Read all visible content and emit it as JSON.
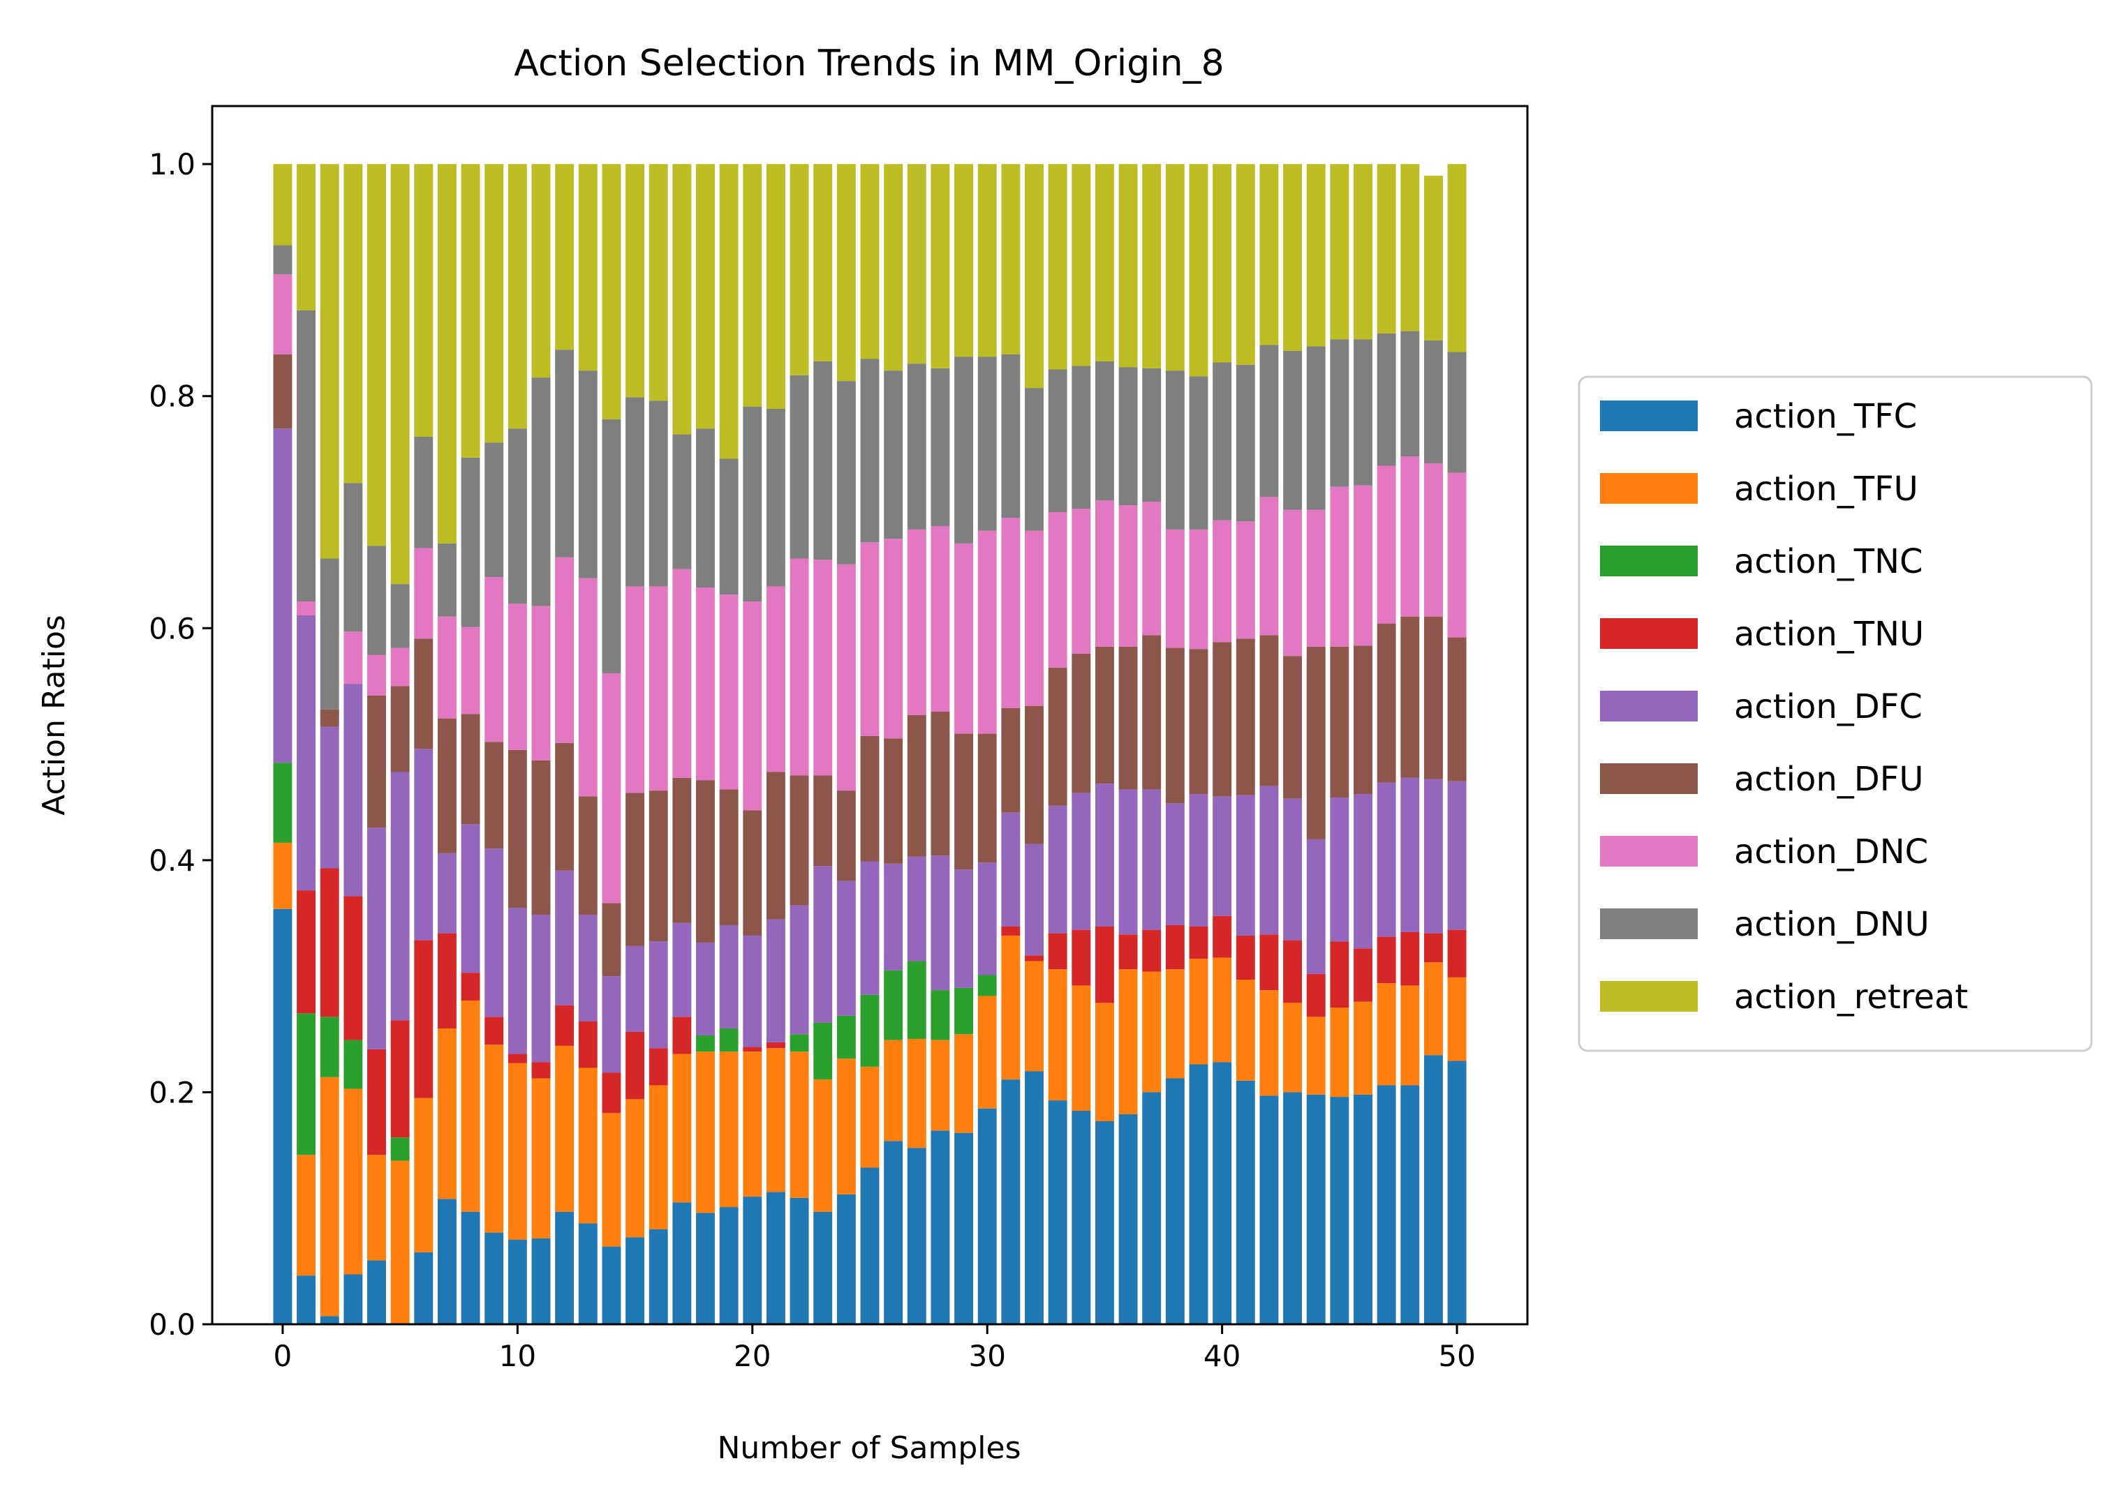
{
  "chart_data": {
    "type": "bar",
    "stacked": true,
    "title": "Action Selection Trends in MM_Origin_8",
    "xlabel": "Number of Samples",
    "ylabel": "Action Ratios",
    "xlim": [
      -3,
      53
    ],
    "ylim": [
      0,
      1.05
    ],
    "xticks": [
      0,
      10,
      20,
      30,
      40,
      50
    ],
    "xtick_labels": [
      "0",
      "10",
      "20",
      "30",
      "40",
      "50"
    ],
    "yticks": [
      0,
      0.2,
      0.4,
      0.6,
      0.8,
      1.0
    ],
    "ytick_labels": [
      "0.0",
      "0.2",
      "0.4",
      "0.6",
      "0.8",
      "1.0"
    ],
    "grid": false,
    "legend_position": "right",
    "x": [
      0,
      1,
      2,
      3,
      4,
      5,
      6,
      7,
      8,
      9,
      10,
      11,
      12,
      13,
      14,
      15,
      16,
      17,
      18,
      19,
      20,
      21,
      22,
      23,
      24,
      25,
      26,
      27,
      28,
      29,
      30,
      31,
      32,
      33,
      34,
      35,
      36,
      37,
      38,
      39,
      40,
      41,
      42,
      43,
      44,
      45,
      46,
      47,
      48,
      49,
      50
    ],
    "series": [
      {
        "name": "action_TFC",
        "color": "#1f77b4",
        "values": [
          0.358,
          0.042,
          0.007,
          0.043,
          0.055,
          0.0,
          0.062,
          0.108,
          0.097,
          0.079,
          0.073,
          0.074,
          0.097,
          0.087,
          0.067,
          0.075,
          0.082,
          0.105,
          0.096,
          0.101,
          0.11,
          0.114,
          0.109,
          0.097,
          0.112,
          0.135,
          0.158,
          0.152,
          0.167,
          0.165,
          0.186,
          0.211,
          0.218,
          0.193,
          0.184,
          0.175,
          0.181,
          0.2,
          0.212,
          0.224,
          0.226,
          0.21,
          0.197,
          0.2,
          0.198,
          0.196,
          0.198,
          0.206,
          0.206,
          0.232,
          0.227
        ]
      },
      {
        "name": "action_TFU",
        "color": "#ff7f0e",
        "values": [
          0.057,
          0.104,
          0.206,
          0.16,
          0.091,
          0.141,
          0.133,
          0.147,
          0.182,
          0.162,
          0.152,
          0.138,
          0.143,
          0.134,
          0.115,
          0.119,
          0.124,
          0.128,
          0.139,
          0.134,
          0.125,
          0.124,
          0.126,
          0.114,
          0.117,
          0.087,
          0.087,
          0.094,
          0.078,
          0.085,
          0.097,
          0.124,
          0.095,
          0.113,
          0.108,
          0.102,
          0.125,
          0.104,
          0.094,
          0.091,
          0.09,
          0.087,
          0.091,
          0.077,
          0.067,
          0.077,
          0.08,
          0.088,
          0.086,
          0.08,
          0.072
        ]
      },
      {
        "name": "action_TNC",
        "color": "#2ca02c",
        "values": [
          0.069,
          0.122,
          0.052,
          0.042,
          0.0,
          0.02,
          0.0,
          0.0,
          0.0,
          0.0,
          0.0,
          0.0,
          0.0,
          0.0,
          0.0,
          0.0,
          0.0,
          0.0,
          0.014,
          0.02,
          0.0,
          0.0,
          0.015,
          0.049,
          0.037,
          0.062,
          0.06,
          0.067,
          0.043,
          0.04,
          0.018,
          0.0,
          0.0,
          0.0,
          0.0,
          0.0,
          0.0,
          0.0,
          0.0,
          0.0,
          0.0,
          0.0,
          0.0,
          0.0,
          0.0,
          0.0,
          0.0,
          0.0,
          0.0,
          0.0,
          0.0
        ]
      },
      {
        "name": "action_TNU",
        "color": "#d62728",
        "values": [
          0.0,
          0.106,
          0.128,
          0.124,
          0.091,
          0.101,
          0.136,
          0.082,
          0.024,
          0.024,
          0.008,
          0.014,
          0.035,
          0.04,
          0.035,
          0.058,
          0.032,
          0.032,
          0.0,
          0.0,
          0.004,
          0.005,
          0.0,
          0.0,
          0.0,
          0.0,
          0.0,
          0.0,
          0.0,
          0.0,
          0.0,
          0.008,
          0.005,
          0.031,
          0.048,
          0.066,
          0.03,
          0.036,
          0.038,
          0.028,
          0.036,
          0.038,
          0.048,
          0.054,
          0.037,
          0.057,
          0.046,
          0.04,
          0.046,
          0.025,
          0.041
        ]
      },
      {
        "name": "action_DFC",
        "color": "#9467bd",
        "values": [
          0.288,
          0.237,
          0.122,
          0.183,
          0.191,
          0.214,
          0.165,
          0.069,
          0.128,
          0.145,
          0.126,
          0.127,
          0.116,
          0.092,
          0.083,
          0.074,
          0.092,
          0.081,
          0.08,
          0.089,
          0.096,
          0.106,
          0.111,
          0.135,
          0.116,
          0.115,
          0.092,
          0.09,
          0.116,
          0.102,
          0.097,
          0.098,
          0.096,
          0.11,
          0.118,
          0.123,
          0.125,
          0.121,
          0.105,
          0.114,
          0.103,
          0.121,
          0.128,
          0.122,
          0.116,
          0.124,
          0.133,
          0.133,
          0.133,
          0.133,
          0.128
        ]
      },
      {
        "name": "action_DFU",
        "color": "#8c564b",
        "values": [
          0.064,
          0.0,
          0.015,
          0.0,
          0.114,
          0.074,
          0.095,
          0.116,
          0.095,
          0.092,
          0.136,
          0.133,
          0.11,
          0.102,
          0.063,
          0.132,
          0.13,
          0.125,
          0.14,
          0.117,
          0.108,
          0.127,
          0.112,
          0.078,
          0.078,
          0.108,
          0.108,
          0.122,
          0.124,
          0.117,
          0.111,
          0.09,
          0.119,
          0.119,
          0.12,
          0.118,
          0.123,
          0.133,
          0.134,
          0.125,
          0.133,
          0.135,
          0.13,
          0.123,
          0.166,
          0.13,
          0.128,
          0.137,
          0.139,
          0.14,
          0.124
        ]
      },
      {
        "name": "action_DNC",
        "color": "#e377c2",
        "values": [
          0.069,
          0.012,
          0.0,
          0.045,
          0.035,
          0.033,
          0.078,
          0.088,
          0.075,
          0.142,
          0.126,
          0.133,
          0.16,
          0.188,
          0.198,
          0.178,
          0.176,
          0.18,
          0.166,
          0.168,
          0.18,
          0.16,
          0.187,
          0.186,
          0.195,
          0.167,
          0.172,
          0.16,
          0.16,
          0.164,
          0.175,
          0.164,
          0.151,
          0.134,
          0.125,
          0.126,
          0.122,
          0.115,
          0.102,
          0.103,
          0.105,
          0.101,
          0.119,
          0.126,
          0.118,
          0.138,
          0.138,
          0.136,
          0.138,
          0.132,
          0.142
        ]
      },
      {
        "name": "action_DNU",
        "color": "#7f7f7f",
        "values": [
          0.025,
          0.251,
          0.13,
          0.128,
          0.094,
          0.055,
          0.096,
          0.063,
          0.146,
          0.116,
          0.151,
          0.197,
          0.179,
          0.179,
          0.219,
          0.163,
          0.16,
          0.116,
          0.137,
          0.117,
          0.168,
          0.153,
          0.158,
          0.171,
          0.158,
          0.158,
          0.145,
          0.143,
          0.136,
          0.161,
          0.15,
          0.141,
          0.123,
          0.123,
          0.123,
          0.12,
          0.119,
          0.115,
          0.137,
          0.132,
          0.136,
          0.135,
          0.131,
          0.137,
          0.141,
          0.127,
          0.126,
          0.114,
          0.108,
          0.106,
          0.104
        ]
      },
      {
        "name": "action_retreat",
        "color": "#bcbd22",
        "values": [
          0.07,
          0.126,
          0.34,
          0.275,
          0.329,
          0.362,
          0.235,
          0.327,
          0.253,
          0.24,
          0.228,
          0.184,
          0.16,
          0.178,
          0.22,
          0.201,
          0.204,
          0.233,
          0.228,
          0.254,
          0.209,
          0.211,
          0.182,
          0.17,
          0.187,
          0.168,
          0.178,
          0.172,
          0.176,
          0.166,
          0.166,
          0.164,
          0.193,
          0.177,
          0.174,
          0.17,
          0.175,
          0.176,
          0.178,
          0.183,
          0.171,
          0.173,
          0.156,
          0.161,
          0.157,
          0.151,
          0.151,
          0.146,
          0.144,
          0.142,
          0.162
        ]
      }
    ]
  }
}
